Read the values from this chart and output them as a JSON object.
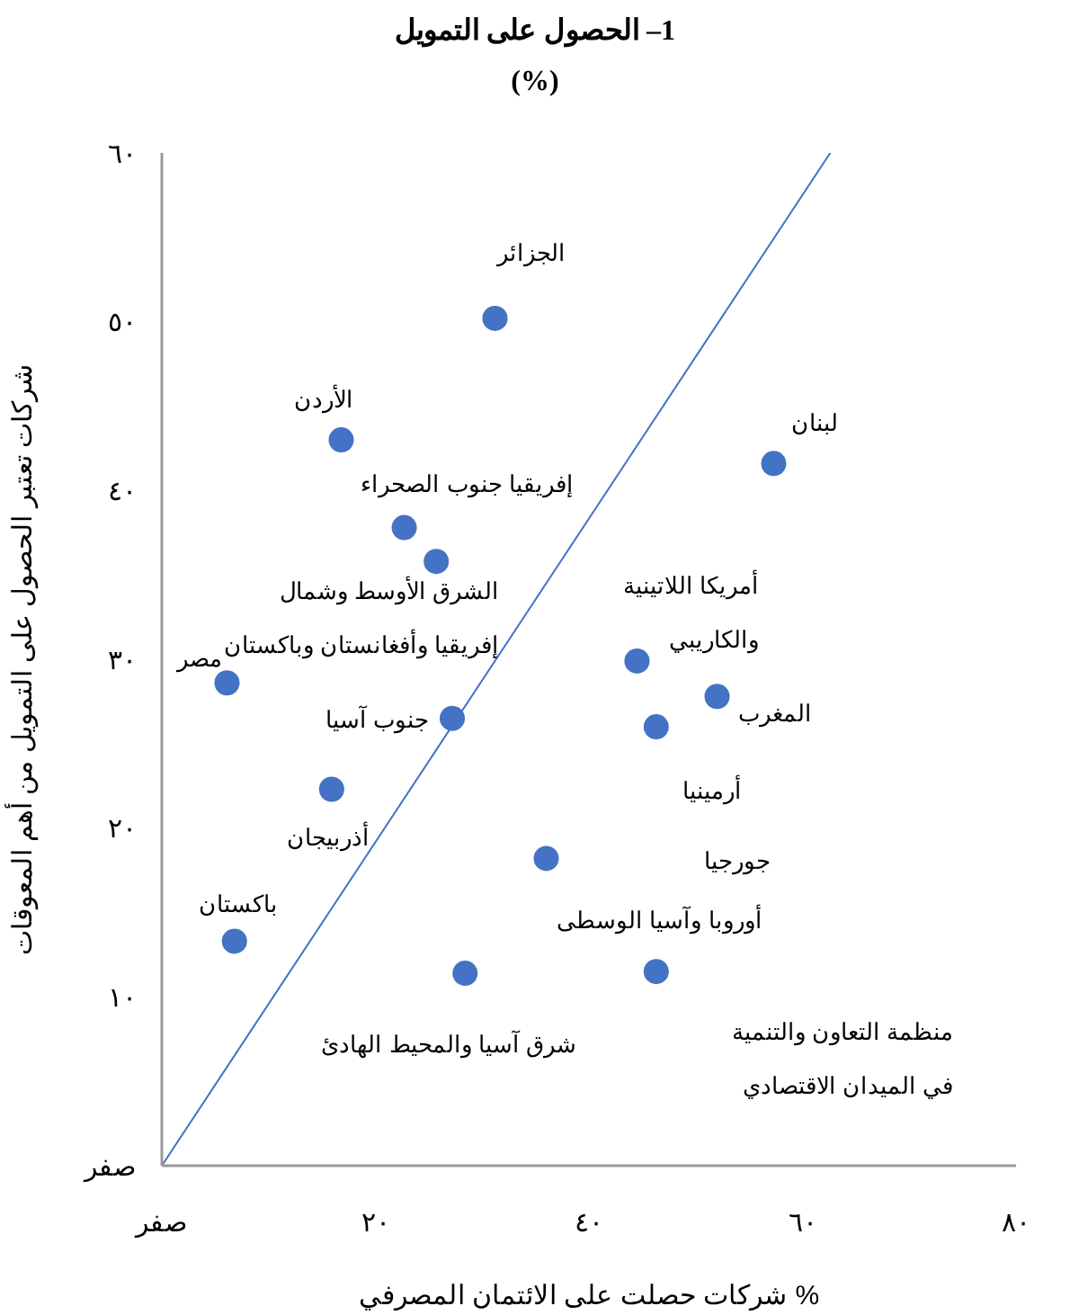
{
  "chart_data": {
    "type": "scatter",
    "title": "1– الحصول على التمويل",
    "subtitle": "(%)",
    "xlabel": "شركات حصلت على الائتمان المصرفي %",
    "ylabel": "شركات تعتبر الحصول على التمويل من أهم المعوقات",
    "xlim": [
      0,
      80
    ],
    "xticks": [
      {
        "value": 0,
        "label": "صفر"
      },
      {
        "value": 20,
        "label": "٢٠"
      },
      {
        "value": 40,
        "label": "٤٠"
      },
      {
        "value": 60,
        "label": "٦٠"
      },
      {
        "value": 80,
        "label": "٨٠"
      }
    ],
    "ylim": [
      0,
      60
    ],
    "yticks": [
      {
        "value": 0,
        "label": "صفر"
      },
      {
        "value": 10,
        "label": "١٠"
      },
      {
        "value": 20,
        "label": "٢٠"
      },
      {
        "value": 30,
        "label": "٣٠"
      },
      {
        "value": 40,
        "label": "٤٠"
      },
      {
        "value": 50,
        "label": "٥٠"
      },
      {
        "value": 60,
        "label": "٦٠"
      }
    ],
    "grid": false,
    "legend": false,
    "marker": "circle",
    "series": [
      {
        "type": "scatter",
        "color": "#4472c4",
        "x": [
          31.2,
          16.8,
          57.3,
          22.7,
          25.7,
          44.5,
          6.1,
          27.2,
          52.0,
          46.3,
          15.9,
          36.0,
          6.8,
          28.4,
          46.3
        ],
        "values": [
          50.2,
          43.0,
          41.6,
          37.8,
          35.8,
          29.9,
          28.6,
          26.5,
          27.8,
          26.0,
          22.3,
          18.2,
          13.3,
          11.4,
          11.5
        ]
      },
      {
        "type": "line",
        "color": "#4472c4",
        "line_style": "solid",
        "marker": "none",
        "x": [
          0,
          62.6
        ],
        "values": [
          0,
          60
        ]
      }
    ],
    "annotations": [
      {
        "text": "الجزائر",
        "x": 31.2,
        "y": 50.2
      },
      {
        "text": "الأردن",
        "x": 16.8,
        "y": 43.0
      },
      {
        "text": "لبنان",
        "x": 57.3,
        "y": 41.6
      },
      {
        "text": "إفريقيا جنوب الصحراء",
        "x": 22.7,
        "y": 37.8
      },
      {
        "text": "الشرق الأوسط وشمال\nإفريقيا وأفغانستان وباكستان",
        "x": 25.7,
        "y": 35.8
      },
      "أمريكا اللاتينية\nوالكاريبي",
      {
        "text": "مصر",
        "x": 6.1,
        "y": 28.6
      },
      {
        "text": "جنوب آسيا",
        "x": 27.2,
        "y": 26.5
      },
      {
        "text": "المغرب",
        "x": 52.0,
        "y": 27.8
      },
      {
        "text": "أرمينيا",
        "x": 46.3,
        "y": 26.0
      },
      {
        "text": "أذربيجان",
        "x": 15.9,
        "y": 22.3
      },
      "جورجيا",
      {
        "text": "أوروبا وآسيا الوسطى",
        "x": 36.0,
        "y": 18.2
      },
      {
        "text": "باكستان",
        "x": 6.8,
        "y": 13.3
      },
      {
        "text": "شرق آسيا والمحيط الهادئ",
        "x": 28.4,
        "y": 11.4
      },
      "منظمة التعاون والتنمية\nفي الميدان الاقتصادي"
    ]
  }
}
